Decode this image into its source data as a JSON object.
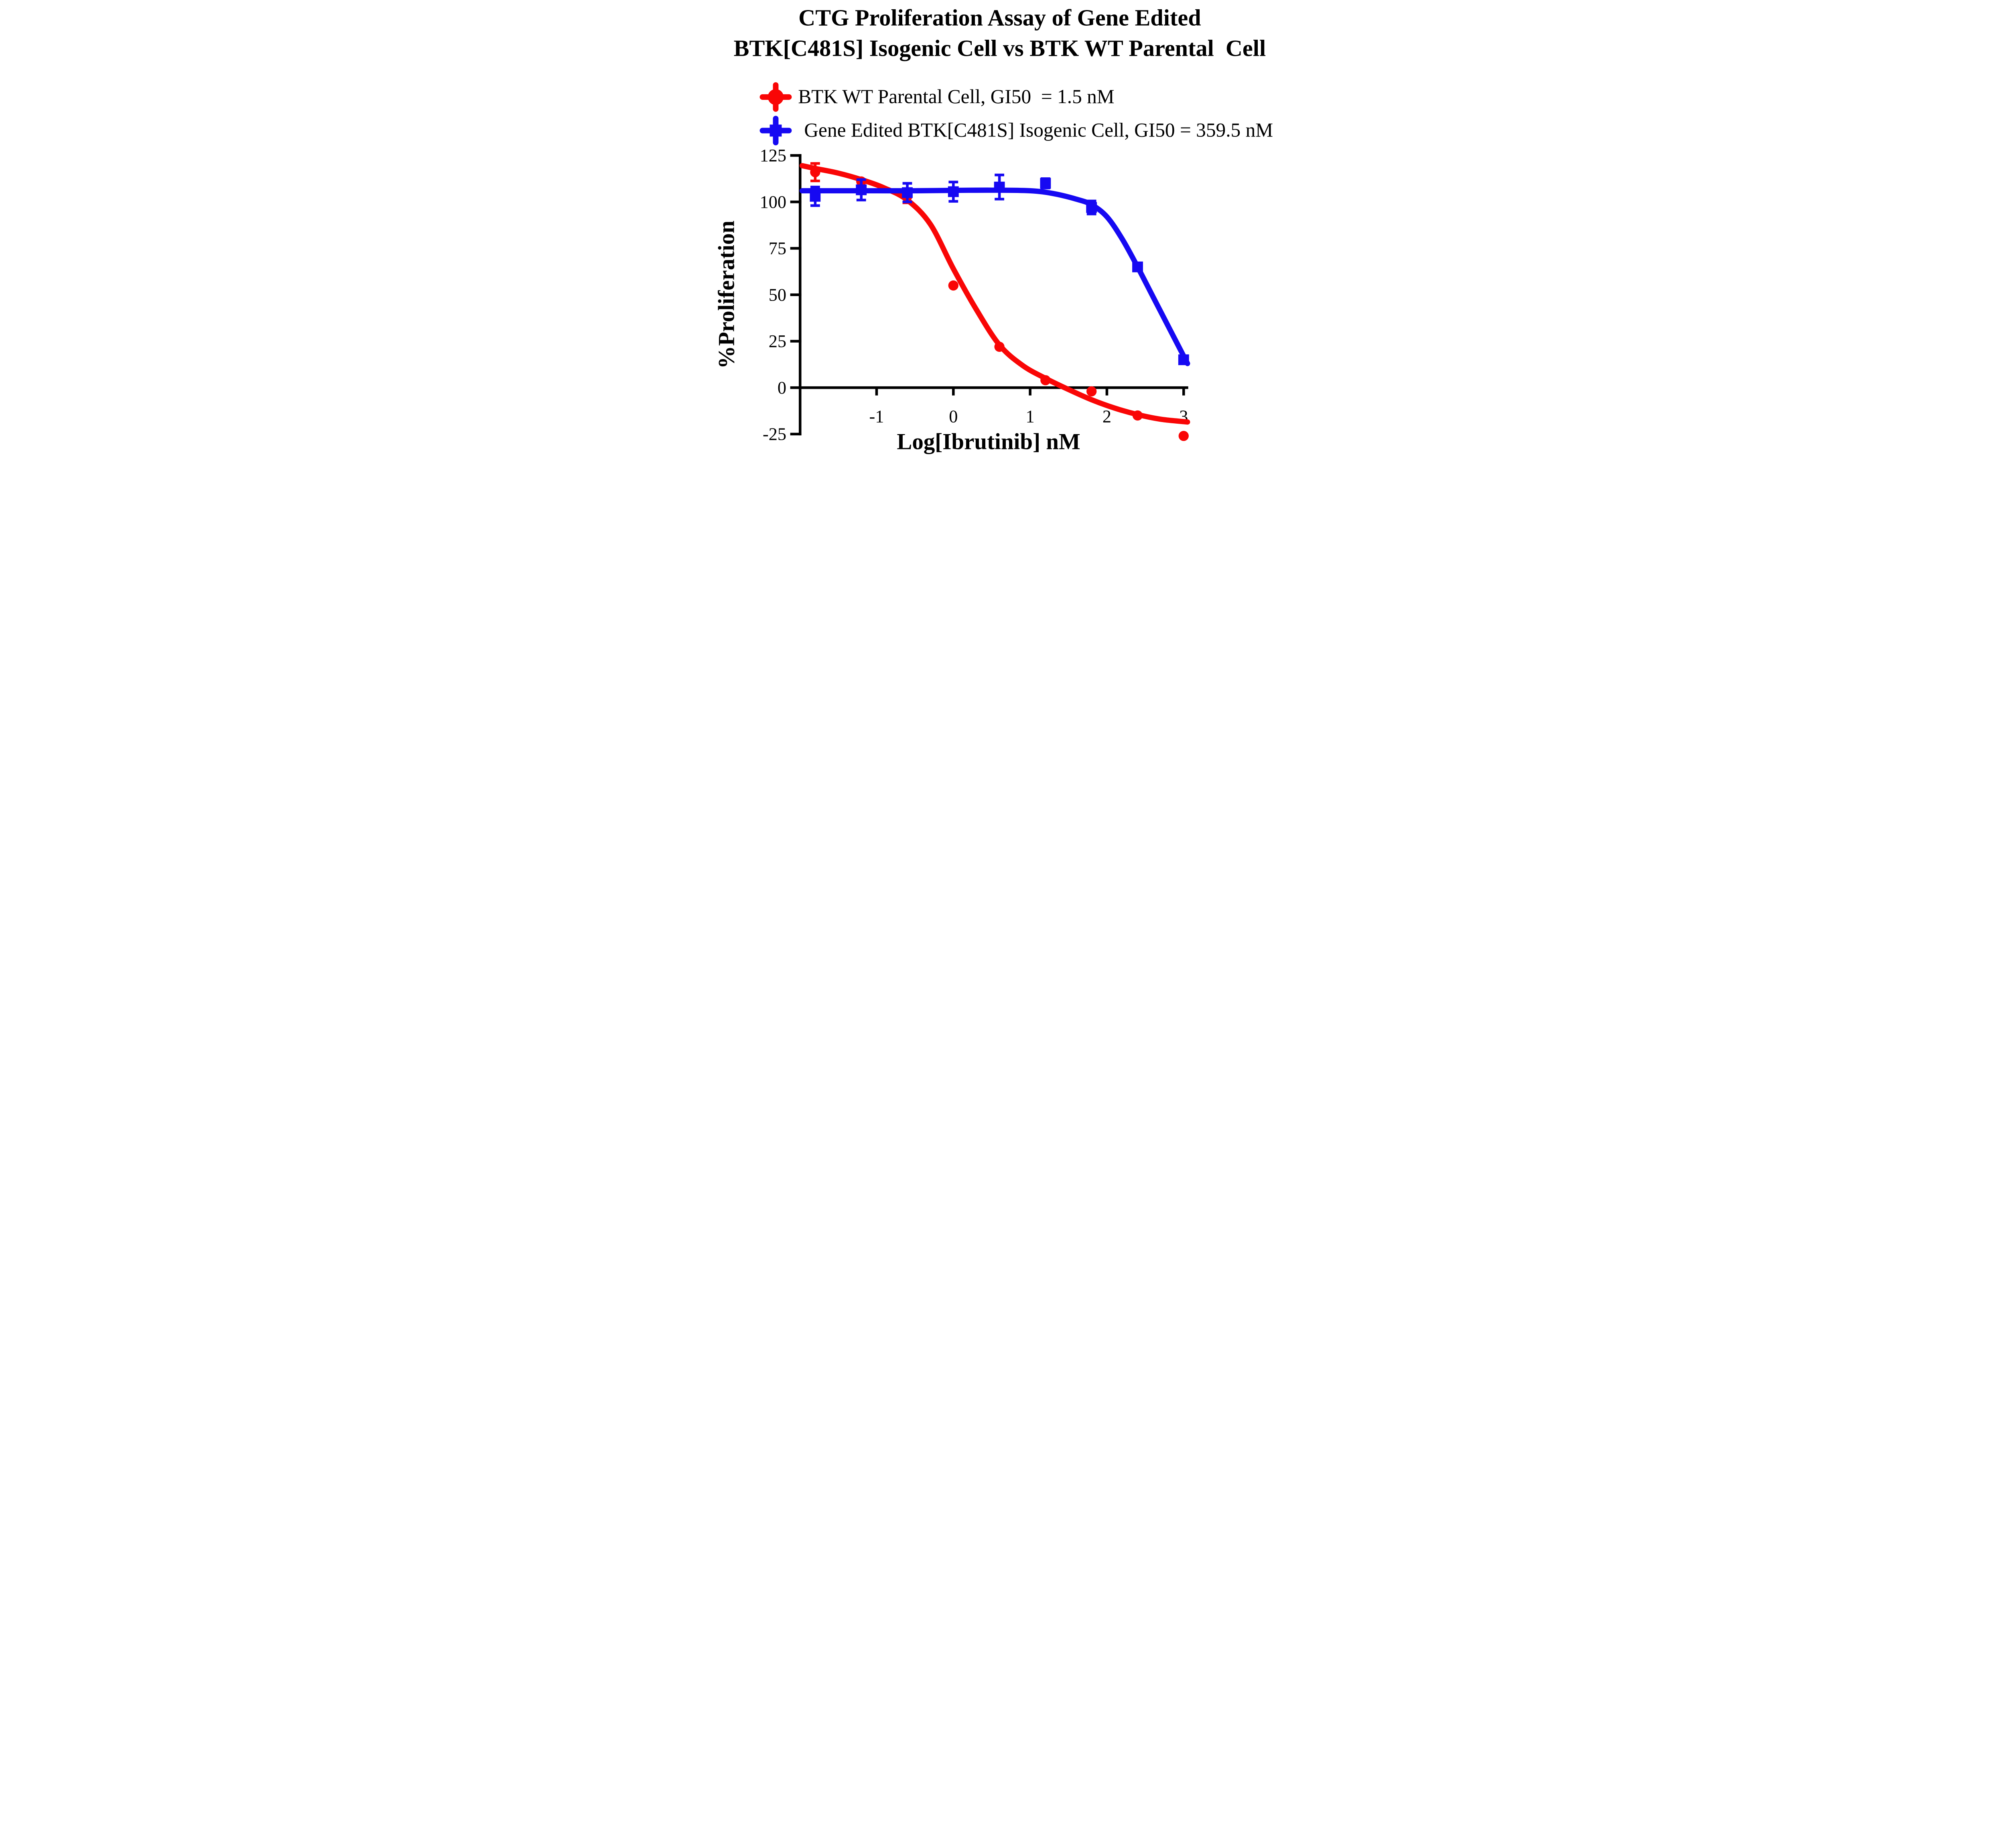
{
  "title": {
    "line1": "CTG Proliferation Assay of Gene Edited",
    "line2": "BTK[C481S] Isogenic Cell vs BTK WT Parental  Cell"
  },
  "legend": {
    "items": [
      {
        "label": "BTK WT Parental Cell, GI50  = 1.5 nM",
        "marker": "circle",
        "color": "#f90606"
      },
      {
        "label": "Gene Edited BTK[C481S] Isogenic Cell, GI50 = 359.5 nM",
        "marker": "square",
        "color": "#1609f2"
      }
    ]
  },
  "chart_data": {
    "type": "scatter",
    "title": "CTG Proliferation Assay of Gene Edited BTK[C481S] Isogenic Cell vs BTK WT Parental Cell",
    "xlabel": "Log[Ibrutinib] nM",
    "ylabel": "%Proliferation",
    "xlim": [
      -2.05,
      3.1
    ],
    "ylim": [
      -25,
      125
    ],
    "x_ticks": [
      -1,
      0,
      1,
      2,
      3
    ],
    "y_ticks": [
      125,
      100,
      75,
      50,
      25,
      0,
      -25
    ],
    "grid": false,
    "legend_position": "top-left",
    "series": [
      {
        "name": "BTK WT Parental Cell",
        "gi50": "1.5 nM",
        "marker": "circle",
        "color": "#f90606",
        "x": [
          -1.8,
          -1.2,
          -0.6,
          0,
          0.6,
          1.2,
          1.8,
          2.4,
          3
        ],
        "y": [
          116,
          111,
          103,
          55,
          22,
          4,
          -2,
          -15,
          -26
        ],
        "y_err": [
          4.7,
          0,
          3.5,
          0,
          0,
          0,
          0,
          0,
          0
        ],
        "fit_x": [
          -1.97,
          -1.8,
          -1.5,
          -1.2,
          -0.9,
          -0.6,
          -0.3,
          0,
          0.3,
          0.6,
          0.9,
          1.2,
          1.5,
          1.8,
          2.1,
          2.4,
          2.7,
          3.05
        ],
        "fit_y": [
          119.5,
          118,
          115.5,
          112,
          107.5,
          101,
          88,
          64,
          42,
          23,
          12,
          5,
          -1,
          -6.5,
          -11,
          -14.5,
          -17,
          -18.5
        ]
      },
      {
        "name": "Gene Edited BTK[C481S] Isogenic Cell",
        "gi50": "359.5 nM",
        "marker": "square",
        "color": "#1609f2",
        "x": [
          -1.8,
          -1.2,
          -0.6,
          0,
          0.6,
          1.2,
          1.8,
          2.4,
          3
        ],
        "y": [
          103,
          106.5,
          105,
          105.5,
          108,
          110,
          97,
          65,
          15
        ],
        "y_err": [
          5,
          5.5,
          5,
          5.2,
          6.5,
          2.5,
          3.5,
          0,
          0
        ],
        "fit_x": [
          -1.97,
          -1.5,
          -1.0,
          -0.5,
          0,
          0.5,
          1.0,
          1.3,
          1.6,
          1.8,
          2.0,
          2.2,
          2.4,
          2.6,
          2.8,
          3.05
        ],
        "fit_y": [
          106,
          106,
          106,
          106,
          106.2,
          106.3,
          106,
          104.5,
          101.5,
          98.5,
          92,
          80,
          65,
          49,
          33,
          13
        ]
      }
    ]
  }
}
